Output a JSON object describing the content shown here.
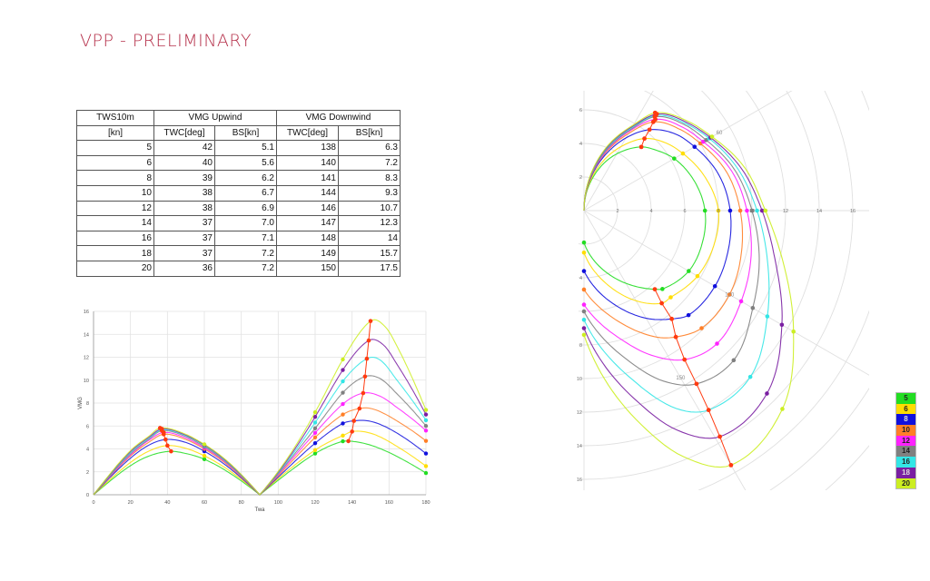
{
  "title": "VPP - PRELIMINARY",
  "colors": {
    "title": "#b5304a",
    "optimum": "#ff3a10"
  },
  "chart_data": [
    {
      "type": "table",
      "header_row1": [
        "TWS10m",
        "VMG Upwind",
        "VMG Downwind"
      ],
      "header_row2": [
        "[kn]",
        "TWC[deg]",
        "BS[kn]",
        "TWC[deg]",
        "BS[kn]"
      ],
      "rows": [
        [
          "5",
          "42",
          "5.1",
          "138",
          "6.3"
        ],
        [
          "6",
          "40",
          "5.6",
          "140",
          "7.2"
        ],
        [
          "8",
          "39",
          "6.2",
          "141",
          "8.3"
        ],
        [
          "10",
          "38",
          "6.7",
          "144",
          "9.3"
        ],
        [
          "12",
          "38",
          "6.9",
          "146",
          "10.7"
        ],
        [
          "14",
          "37",
          "7.0",
          "147",
          "12.3"
        ],
        [
          "16",
          "37",
          "7.1",
          "148",
          "14"
        ],
        [
          "18",
          "37",
          "7.2",
          "149",
          "15.7"
        ],
        [
          "20",
          "36",
          "7.2",
          "150",
          "17.5"
        ]
      ]
    },
    {
      "type": "line",
      "xlabel": "Twa",
      "ylabel": "VMG",
      "xlim": [
        0,
        180
      ],
      "ylim": [
        0,
        16
      ],
      "xticks": [
        "0",
        "20",
        "40",
        "60",
        "80",
        "100",
        "120",
        "140",
        "160",
        "180"
      ],
      "yticks": [
        "0",
        "2",
        "4",
        "6",
        "8",
        "10",
        "12",
        "14",
        "16"
      ],
      "grid": true,
      "vmg_definition": "BS x |cos(TWA)|",
      "marker_twa": [
        60,
        120,
        135,
        180
      ]
    },
    {
      "type": "polar",
      "angle_unit": "deg TWA",
      "radial_max": 16,
      "x_ticks": [
        "2",
        "4",
        "6",
        "8",
        "10",
        "12",
        "14",
        "16"
      ],
      "y_ticks_up": [
        "2",
        "4",
        "6"
      ],
      "y_ticks_down": [
        "4",
        "8",
        "10",
        "12",
        "14",
        "16"
      ],
      "angle_labels": [
        "60",
        "120",
        "150"
      ],
      "marker_twa": [
        60,
        90,
        120,
        135,
        180
      ],
      "grid": true,
      "legend": "right",
      "series": [
        {
          "name": "5",
          "color": "#22dd22",
          "points": [
            [
              0,
              0
            ],
            [
              20,
              2.7
            ],
            [
              30,
              3.9
            ],
            [
              42,
              5.1
            ],
            [
              50,
              5.6
            ],
            [
              60,
              6.2
            ],
            [
              75,
              6.8
            ],
            [
              90,
              7.2
            ],
            [
              105,
              7.3
            ],
            [
              120,
              7.2
            ],
            [
              135,
              6.6
            ],
            [
              138,
              6.3
            ],
            [
              150,
              5.0
            ],
            [
              165,
              3.4
            ],
            [
              180,
              1.9
            ]
          ]
        },
        {
          "name": "6",
          "color": "#ffdd00",
          "points": [
            [
              0,
              0
            ],
            [
              20,
              3.0
            ],
            [
              30,
              4.4
            ],
            [
              40,
              5.6
            ],
            [
              50,
              6.3
            ],
            [
              60,
              6.8
            ],
            [
              75,
              7.5
            ],
            [
              90,
              8.0
            ],
            [
              105,
              8.0
            ],
            [
              120,
              7.8
            ],
            [
              135,
              7.3
            ],
            [
              140,
              7.2
            ],
            [
              150,
              6.2
            ],
            [
              165,
              4.3
            ],
            [
              180,
              2.5
            ]
          ]
        },
        {
          "name": "8",
          "color": "#1010dd",
          "points": [
            [
              0,
              0
            ],
            [
              20,
              3.4
            ],
            [
              30,
              5.0
            ],
            [
              39,
              6.2
            ],
            [
              50,
              7.1
            ],
            [
              60,
              7.6
            ],
            [
              75,
              8.3
            ],
            [
              90,
              8.7
            ],
            [
              105,
              8.9
            ],
            [
              120,
              9.0
            ],
            [
              135,
              8.8
            ],
            [
              141,
              8.3
            ],
            [
              150,
              7.4
            ],
            [
              165,
              5.5
            ],
            [
              180,
              3.6
            ]
          ]
        },
        {
          "name": "10",
          "color": "#ff7f27",
          "points": [
            [
              0,
              0
            ],
            [
              20,
              3.6
            ],
            [
              30,
              5.3
            ],
            [
              38,
              6.7
            ],
            [
              50,
              7.5
            ],
            [
              60,
              8.0
            ],
            [
              75,
              8.8
            ],
            [
              90,
              9.3
            ],
            [
              105,
              9.7
            ],
            [
              120,
              10.0
            ],
            [
              135,
              9.9
            ],
            [
              144,
              9.3
            ],
            [
              150,
              8.7
            ],
            [
              165,
              6.6
            ],
            [
              180,
              4.7
            ]
          ]
        },
        {
          "name": "12",
          "color": "#ff22ff",
          "points": [
            [
              0,
              0
            ],
            [
              20,
              3.7
            ],
            [
              30,
              5.5
            ],
            [
              38,
              6.9
            ],
            [
              50,
              7.7
            ],
            [
              60,
              8.2
            ],
            [
              75,
              9.1
            ],
            [
              90,
              9.7
            ],
            [
              105,
              10.3
            ],
            [
              120,
              10.8
            ],
            [
              135,
              11.2
            ],
            [
              146,
              10.7
            ],
            [
              155,
              9.5
            ],
            [
              165,
              7.8
            ],
            [
              180,
              5.6
            ]
          ]
        },
        {
          "name": "14",
          "color": "#808080",
          "points": [
            [
              0,
              0
            ],
            [
              20,
              3.8
            ],
            [
              30,
              5.6
            ],
            [
              37,
              7.0
            ],
            [
              50,
              7.9
            ],
            [
              60,
              8.4
            ],
            [
              75,
              9.3
            ],
            [
              90,
              10.0
            ],
            [
              105,
              10.8
            ],
            [
              120,
              11.6
            ],
            [
              135,
              12.6
            ],
            [
              147,
              12.3
            ],
            [
              155,
              11.2
            ],
            [
              165,
              9.0
            ],
            [
              180,
              6.0
            ]
          ]
        },
        {
          "name": "16",
          "color": "#33e6e6",
          "points": [
            [
              0,
              0
            ],
            [
              20,
              3.9
            ],
            [
              30,
              5.7
            ],
            [
              37,
              7.1
            ],
            [
              50,
              8.0
            ],
            [
              60,
              8.6
            ],
            [
              75,
              9.5
            ],
            [
              90,
              10.3
            ],
            [
              105,
              11.3
            ],
            [
              120,
              12.6
            ],
            [
              135,
              14.0
            ],
            [
              148,
              14.0
            ],
            [
              155,
              13.0
            ],
            [
              165,
              10.2
            ],
            [
              180,
              6.5
            ]
          ]
        },
        {
          "name": "18",
          "color": "#7a1fa2",
          "points": [
            [
              0,
              0
            ],
            [
              20,
              4.0
            ],
            [
              30,
              5.8
            ],
            [
              37,
              7.2
            ],
            [
              50,
              8.1
            ],
            [
              60,
              8.7
            ],
            [
              75,
              9.7
            ],
            [
              90,
              10.6
            ],
            [
              105,
              11.8
            ],
            [
              120,
              13.6
            ],
            [
              135,
              15.4
            ],
            [
              149,
              15.7
            ],
            [
              157,
              14.2
            ],
            [
              165,
              11.6
            ],
            [
              180,
              7.0
            ]
          ]
        },
        {
          "name": "20",
          "color": "#ccee22",
          "points": [
            [
              0,
              0
            ],
            [
              20,
              4.1
            ],
            [
              30,
              5.9
            ],
            [
              36,
              7.2
            ],
            [
              50,
              8.2
            ],
            [
              60,
              8.8
            ],
            [
              75,
              9.9
            ],
            [
              90,
              10.8
            ],
            [
              105,
              12.3
            ],
            [
              120,
              14.4
            ],
            [
              135,
              16.7
            ],
            [
              150,
              17.5
            ],
            [
              158,
              15.8
            ],
            [
              165,
              13.2
            ],
            [
              180,
              7.4
            ]
          ]
        }
      ]
    }
  ]
}
